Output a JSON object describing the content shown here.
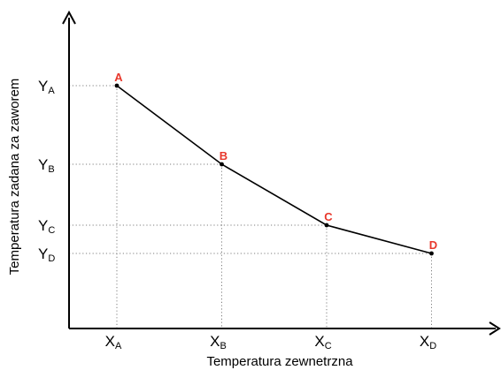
{
  "chart_data": {
    "type": "line",
    "title": "",
    "xlabel": "Temperatura zewnetrzna",
    "ylabel": "Temperatura zadana za zaworem",
    "x_ticks": [
      {
        "main": "X",
        "sub": "A"
      },
      {
        "main": "X",
        "sub": "B"
      },
      {
        "main": "X",
        "sub": "C"
      },
      {
        "main": "X",
        "sub": "D"
      }
    ],
    "y_ticks": [
      {
        "main": "Y",
        "sub": "A"
      },
      {
        "main": "Y",
        "sub": "B"
      },
      {
        "main": "Y",
        "sub": "C"
      },
      {
        "main": "Y",
        "sub": "D"
      }
    ],
    "points": [
      {
        "label": "A",
        "x": 1,
        "y": 4
      },
      {
        "label": "B",
        "x": 2,
        "y": 3
      },
      {
        "label": "C",
        "x": 3,
        "y": 2
      },
      {
        "label": "D",
        "x": 4,
        "y": 1
      }
    ],
    "grid": "dotted guides from points to axes",
    "legend": "none",
    "colors": {
      "line": "#000000",
      "point_label": "#e8382c",
      "guide": "#7f7f7f",
      "axis": "#000000"
    }
  }
}
